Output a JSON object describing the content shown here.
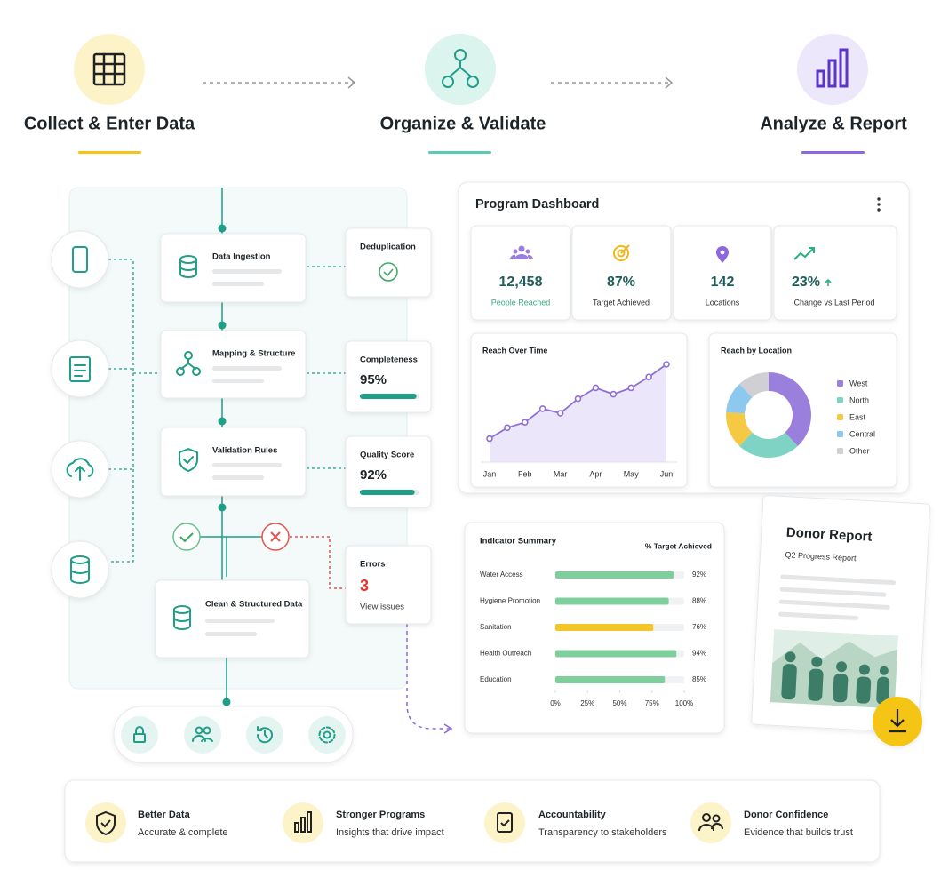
{
  "steps": [
    {
      "title": "Collect & Enter Data"
    },
    {
      "title": "Organize & Validate"
    },
    {
      "title": "Analyze & Report"
    }
  ],
  "pipeline": {
    "stages": [
      "Data Ingestion",
      "Mapping & Structure",
      "Validation Rules",
      "Clean & Structured Data"
    ],
    "checks": {
      "deduplication": {
        "title": "Deduplication"
      },
      "completeness": {
        "title": "Completeness",
        "value": 95,
        "label": "95%"
      },
      "quality": {
        "title": "Quality Score",
        "value": 92,
        "label": "92%"
      },
      "errors": {
        "title": "Errors",
        "value": 3,
        "note": "View issues"
      }
    }
  },
  "dashboard": {
    "title": "Program Dashboard",
    "kpis": [
      {
        "value": "12,458",
        "label": "People Reached"
      },
      {
        "value": "87%",
        "label": "Target Achieved"
      },
      {
        "value": "142",
        "label": "Locations"
      },
      {
        "value": "23%",
        "label": "Change vs Last Period"
      }
    ]
  },
  "chart_data": [
    {
      "type": "area",
      "title": "Reach Over Time",
      "categories": [
        "Jan",
        null,
        "Feb",
        null,
        "Mar",
        null,
        "Apr",
        null,
        "May",
        null,
        "Jun"
      ],
      "values": [
        26,
        38,
        44,
        59,
        54,
        70,
        82,
        75,
        82,
        94,
        108
      ],
      "color": "#8f6fd6"
    },
    {
      "type": "donut",
      "title": "Reach by Location",
      "categories": [
        "West",
        "North",
        "East",
        "Central",
        "Other"
      ],
      "values": [
        38,
        24,
        14,
        12,
        12
      ],
      "colors": [
        "#9b7fdc",
        "#7fd3c4",
        "#f6c945",
        "#8fc8ef",
        "#cfcfd4"
      ]
    },
    {
      "type": "hbar",
      "title": "Indicator Summary",
      "subtitle": "% Target Achieved",
      "categories": [
        "Water Access",
        "Hygiene Promotion",
        "Sanitation",
        "Health Outreach",
        "Education"
      ],
      "values": [
        92,
        88,
        76,
        94,
        85
      ],
      "value_labels": [
        "92%",
        "88%",
        "76%",
        "94%",
        "85%"
      ],
      "colors": [
        "#7fcf9c",
        "#7fcf9c",
        "#f5c628",
        "#7fcf9c",
        "#7fcf9c"
      ],
      "xlim": [
        0,
        100
      ],
      "xticks": [
        {
          "value": 0,
          "label": "0%"
        },
        {
          "value": 25,
          "label": "25%"
        },
        {
          "value": 50,
          "label": "50%"
        },
        {
          "value": 75,
          "label": "75%"
        },
        {
          "value": 100,
          "label": "100%"
        }
      ]
    }
  ],
  "donor_report": {
    "title": "Donor Report",
    "subtitle": "Q2 Progress Report"
  },
  "benefits": [
    {
      "title": "Better Data",
      "text": "Accurate & complete"
    },
    {
      "title": "Stronger Programs",
      "text": "Insights that drive impact"
    },
    {
      "title": "Accountability",
      "text": "Transparency to stakeholders"
    },
    {
      "title": "Donor Confidence",
      "text": "Evidence that builds trust"
    }
  ]
}
